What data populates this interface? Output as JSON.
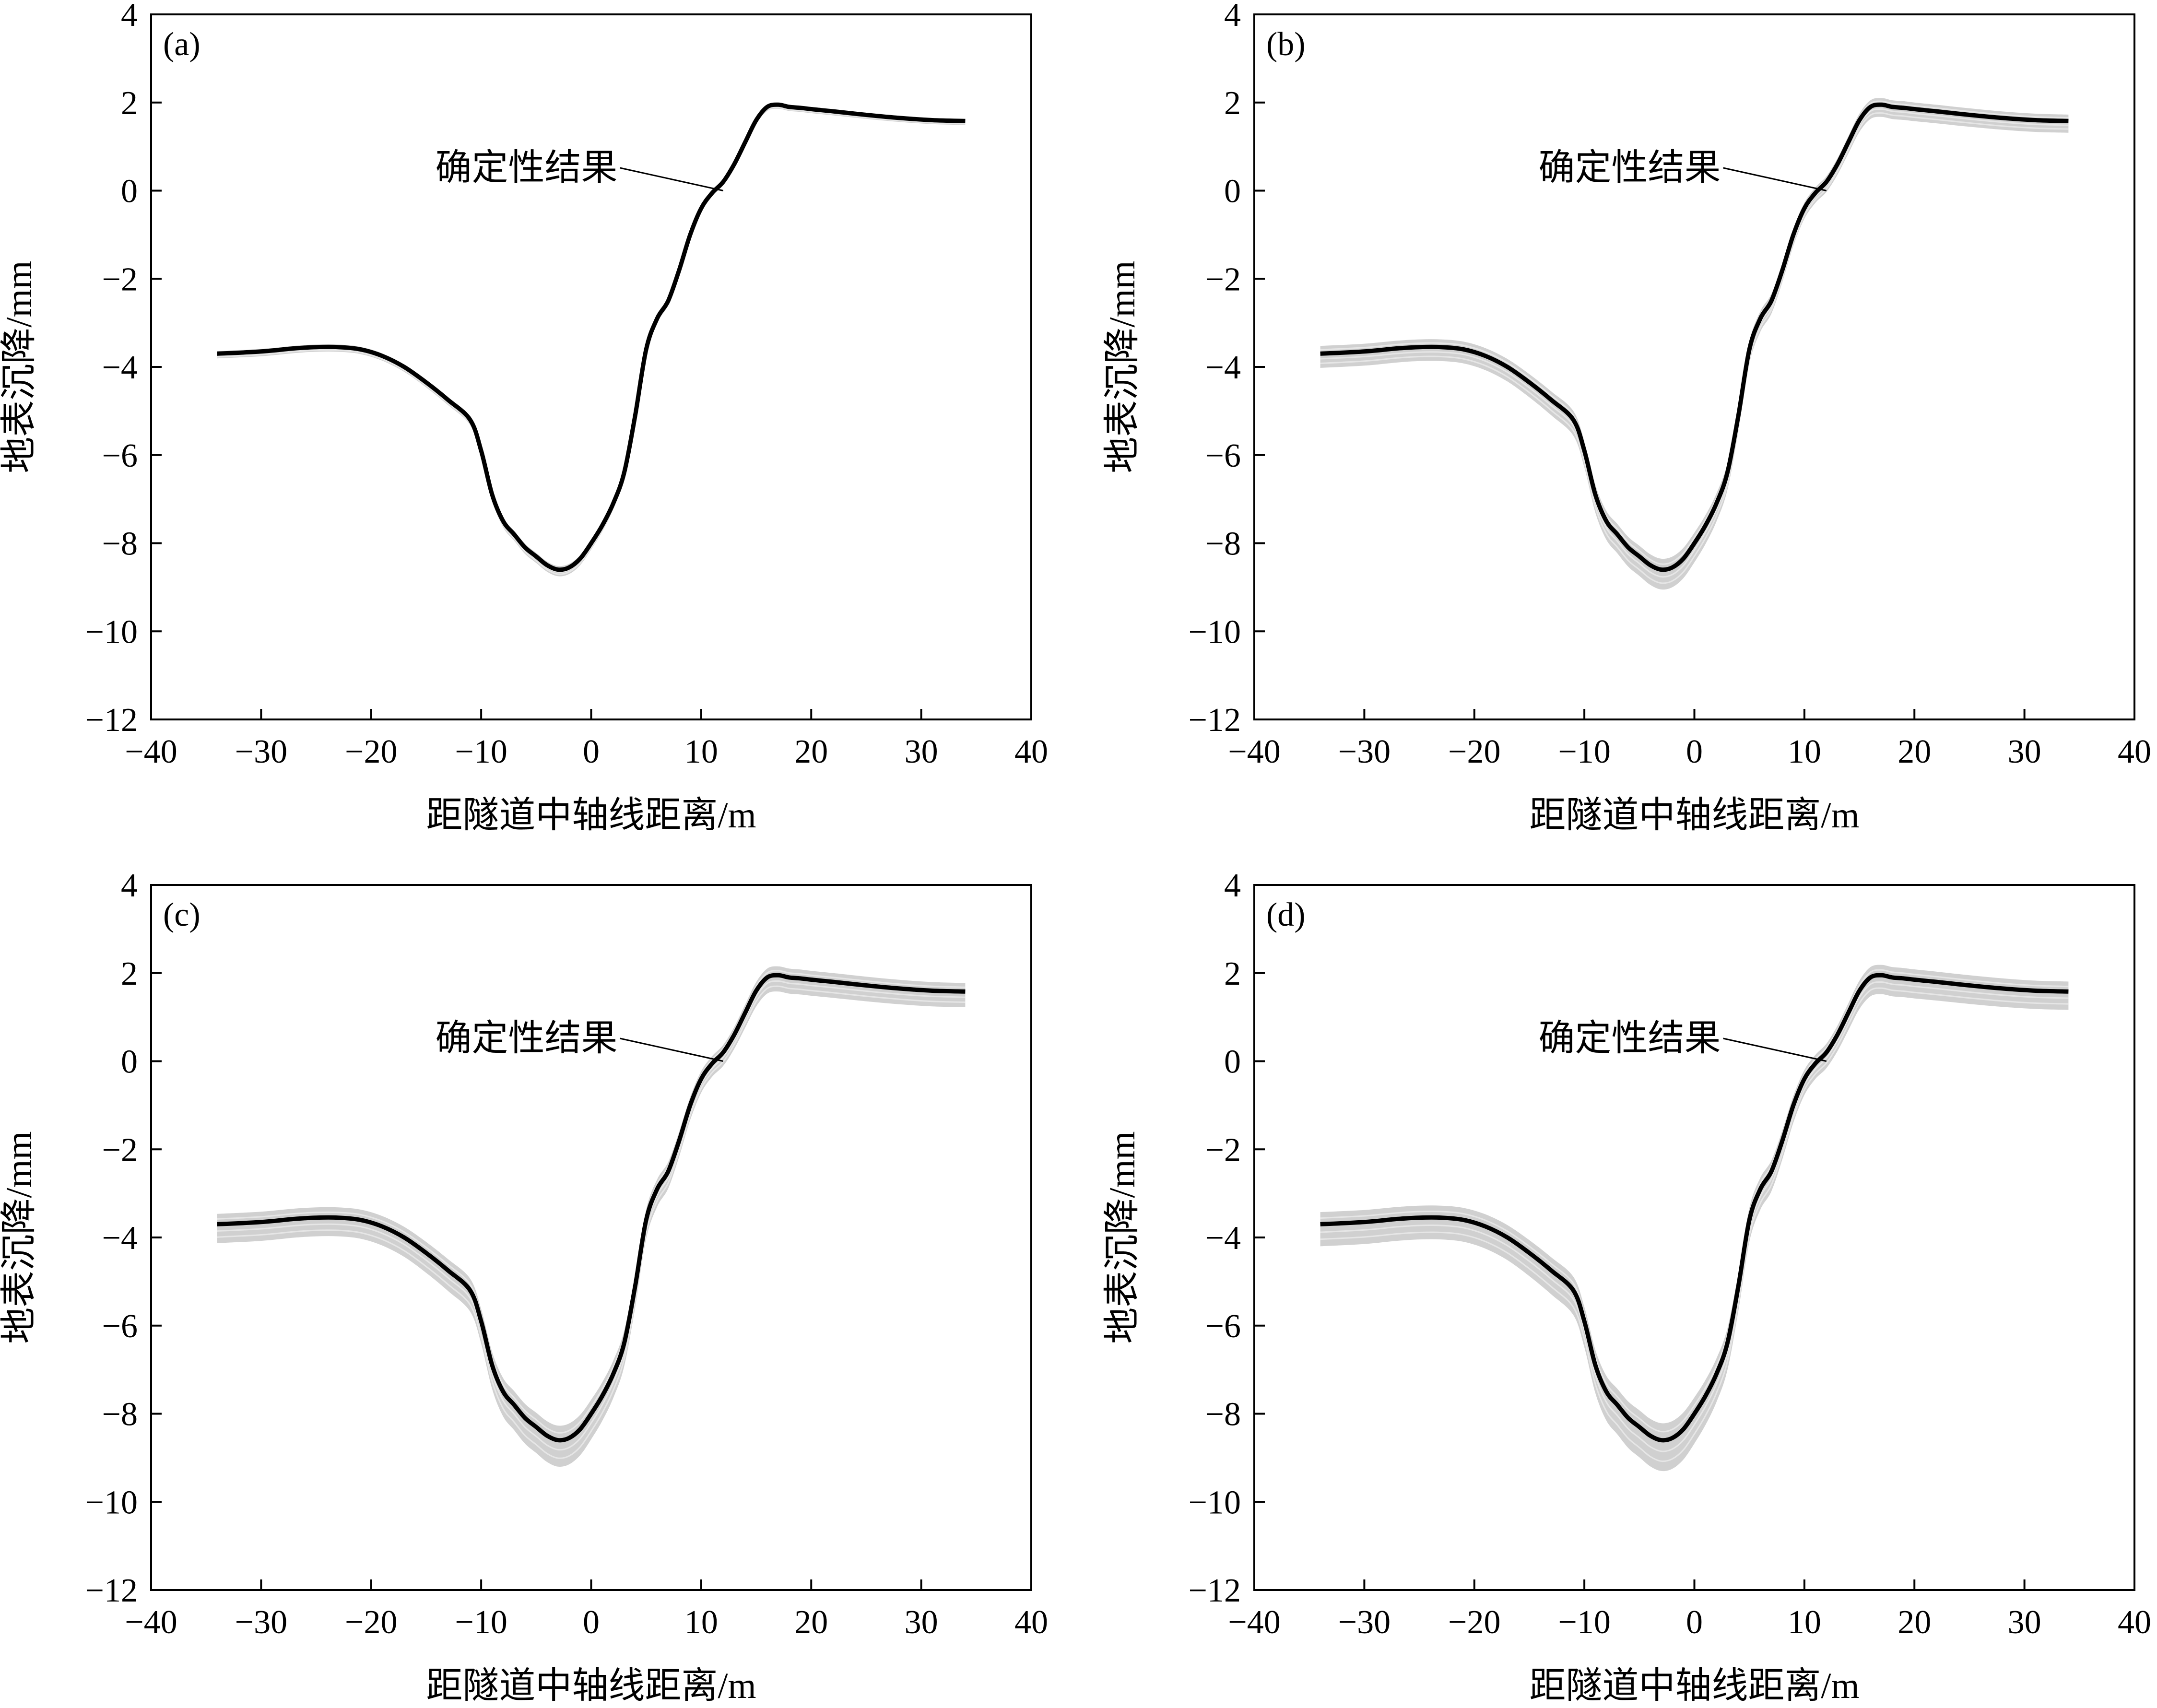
{
  "figure": {
    "description_free": true
  },
  "chart_data": [
    {
      "type": "line",
      "panel_label": "(a)",
      "xlabel": "距隧道中轴线距离/m",
      "ylabel": "地表沉降/mm",
      "xlim": [
        -40,
        40
      ],
      "ylim": [
        -12,
        4
      ],
      "xticks": [
        -40,
        -30,
        -20,
        -10,
        0,
        10,
        20,
        30,
        40
      ],
      "yticks": [
        -12,
        -10,
        -8,
        -6,
        -4,
        -2,
        0,
        2,
        4
      ],
      "xtick_labels": [
        "−40",
        "−30",
        "−20",
        "−10",
        "0",
        "10",
        "20",
        "30",
        "40"
      ],
      "ytick_labels": [
        "−12",
        "−10",
        "−8",
        "−6",
        "−4",
        "−2",
        "0",
        "2",
        "4"
      ],
      "annotation": {
        "text": "确定性结果",
        "target": [
          12,
          0
        ]
      },
      "band_spread": 0.15,
      "series": [
        {
          "name": "确定性结果",
          "color": "#000000",
          "x": [
            -34,
            -30,
            -27,
            -25,
            -23,
            -21,
            -19,
            -17,
            -15,
            -13,
            -11,
            -10,
            -9,
            -8,
            -7,
            -6,
            -5,
            -4,
            -3,
            -2,
            -1,
            0,
            1,
            2,
            3,
            4,
            5,
            6,
            7,
            8,
            9,
            10,
            11,
            12,
            13,
            14,
            15,
            16,
            17,
            18,
            19,
            20,
            22,
            25,
            28,
            31,
            34
          ],
          "y": [
            -3.7,
            -3.65,
            -3.58,
            -3.55,
            -3.55,
            -3.6,
            -3.75,
            -4.0,
            -4.35,
            -4.75,
            -5.2,
            -5.9,
            -6.9,
            -7.5,
            -7.8,
            -8.1,
            -8.3,
            -8.5,
            -8.6,
            -8.55,
            -8.35,
            -8.0,
            -7.6,
            -7.1,
            -6.4,
            -5.1,
            -3.6,
            -2.9,
            -2.5,
            -1.8,
            -1.0,
            -0.4,
            -0.05,
            0.2,
            0.6,
            1.1,
            1.6,
            1.9,
            1.95,
            1.9,
            1.88,
            1.85,
            1.8,
            1.72,
            1.65,
            1.6,
            1.58
          ]
        }
      ]
    },
    {
      "type": "line",
      "panel_label": "(b)",
      "xlabel": "距隧道中轴线距离/m",
      "ylabel": "地表沉降/mm",
      "xlim": [
        -40,
        40
      ],
      "ylim": [
        -12,
        4
      ],
      "xticks": [
        -40,
        -30,
        -20,
        -10,
        0,
        10,
        20,
        30,
        40
      ],
      "yticks": [
        -12,
        -10,
        -8,
        -6,
        -4,
        -2,
        0,
        2,
        4
      ],
      "xtick_labels": [
        "−40",
        "−30",
        "−20",
        "−10",
        "0",
        "10",
        "20",
        "30",
        "40"
      ],
      "ytick_labels": [
        "−12",
        "−10",
        "−8",
        "−6",
        "−4",
        "−2",
        "0",
        "2",
        "4"
      ],
      "annotation": {
        "text": "确定性结果",
        "target": [
          12,
          0
        ]
      },
      "band_spread": 0.45,
      "series": [
        {
          "name": "确定性结果",
          "color": "#000000",
          "x": [
            -34,
            -30,
            -27,
            -25,
            -23,
            -21,
            -19,
            -17,
            -15,
            -13,
            -11,
            -10,
            -9,
            -8,
            -7,
            -6,
            -5,
            -4,
            -3,
            -2,
            -1,
            0,
            1,
            2,
            3,
            4,
            5,
            6,
            7,
            8,
            9,
            10,
            11,
            12,
            13,
            14,
            15,
            16,
            17,
            18,
            19,
            20,
            22,
            25,
            28,
            31,
            34
          ],
          "y": [
            -3.7,
            -3.65,
            -3.58,
            -3.55,
            -3.55,
            -3.6,
            -3.75,
            -4.0,
            -4.35,
            -4.75,
            -5.2,
            -5.9,
            -6.9,
            -7.5,
            -7.8,
            -8.1,
            -8.3,
            -8.5,
            -8.6,
            -8.55,
            -8.35,
            -8.0,
            -7.6,
            -7.1,
            -6.4,
            -5.1,
            -3.6,
            -2.9,
            -2.5,
            -1.8,
            -1.0,
            -0.4,
            -0.05,
            0.2,
            0.6,
            1.1,
            1.6,
            1.9,
            1.95,
            1.9,
            1.88,
            1.85,
            1.8,
            1.72,
            1.65,
            1.6,
            1.58
          ]
        }
      ]
    },
    {
      "type": "line",
      "panel_label": "(c)",
      "xlabel": "距隧道中轴线距离/m",
      "ylabel": "地表沉降/mm",
      "xlim": [
        -40,
        40
      ],
      "ylim": [
        -12,
        4
      ],
      "xticks": [
        -40,
        -30,
        -20,
        -10,
        0,
        10,
        20,
        30,
        40
      ],
      "yticks": [
        -12,
        -10,
        -8,
        -6,
        -4,
        -2,
        0,
        2,
        4
      ],
      "xtick_labels": [
        "−40",
        "−30",
        "−20",
        "−10",
        "0",
        "10",
        "20",
        "30",
        "40"
      ],
      "ytick_labels": [
        "−12",
        "−10",
        "−8",
        "−6",
        "−4",
        "−2",
        "0",
        "2",
        "4"
      ],
      "annotation": {
        "text": "确定性结果",
        "target": [
          12,
          0
        ]
      },
      "band_spread": 0.6,
      "series": [
        {
          "name": "确定性结果",
          "color": "#000000",
          "x": [
            -34,
            -30,
            -27,
            -25,
            -23,
            -21,
            -19,
            -17,
            -15,
            -13,
            -11,
            -10,
            -9,
            -8,
            -7,
            -6,
            -5,
            -4,
            -3,
            -2,
            -1,
            0,
            1,
            2,
            3,
            4,
            5,
            6,
            7,
            8,
            9,
            10,
            11,
            12,
            13,
            14,
            15,
            16,
            17,
            18,
            19,
            20,
            22,
            25,
            28,
            31,
            34
          ],
          "y": [
            -3.7,
            -3.65,
            -3.58,
            -3.55,
            -3.55,
            -3.6,
            -3.75,
            -4.0,
            -4.35,
            -4.75,
            -5.2,
            -5.9,
            -6.9,
            -7.5,
            -7.8,
            -8.1,
            -8.3,
            -8.5,
            -8.6,
            -8.55,
            -8.35,
            -8.0,
            -7.6,
            -7.1,
            -6.4,
            -5.1,
            -3.6,
            -2.9,
            -2.5,
            -1.8,
            -1.0,
            -0.4,
            -0.05,
            0.2,
            0.6,
            1.1,
            1.6,
            1.9,
            1.95,
            1.9,
            1.88,
            1.85,
            1.8,
            1.72,
            1.65,
            1.6,
            1.58
          ]
        }
      ]
    },
    {
      "type": "line",
      "panel_label": "(d)",
      "xlabel": "距隧道中轴线距离/m",
      "ylabel": "地表沉降/mm",
      "xlim": [
        -40,
        40
      ],
      "ylim": [
        -12,
        4
      ],
      "xticks": [
        -40,
        -30,
        -20,
        -10,
        0,
        10,
        20,
        30,
        40
      ],
      "yticks": [
        -12,
        -10,
        -8,
        -6,
        -4,
        -2,
        0,
        2,
        4
      ],
      "xtick_labels": [
        "−40",
        "−30",
        "−20",
        "−10",
        "0",
        "10",
        "20",
        "30",
        "40"
      ],
      "ytick_labels": [
        "−12",
        "−10",
        "−8",
        "−6",
        "−4",
        "−2",
        "0",
        "2",
        "4"
      ],
      "annotation": {
        "text": "确定性结果",
        "target": [
          12,
          0
        ]
      },
      "band_spread": 0.7,
      "series": [
        {
          "name": "确定性结果",
          "color": "#000000",
          "x": [
            -34,
            -30,
            -27,
            -25,
            -23,
            -21,
            -19,
            -17,
            -15,
            -13,
            -11,
            -10,
            -9,
            -8,
            -7,
            -6,
            -5,
            -4,
            -3,
            -2,
            -1,
            0,
            1,
            2,
            3,
            4,
            5,
            6,
            7,
            8,
            9,
            10,
            11,
            12,
            13,
            14,
            15,
            16,
            17,
            18,
            19,
            20,
            22,
            25,
            28,
            31,
            34
          ],
          "y": [
            -3.7,
            -3.65,
            -3.58,
            -3.55,
            -3.55,
            -3.6,
            -3.75,
            -4.0,
            -4.35,
            -4.75,
            -5.2,
            -5.9,
            -6.9,
            -7.5,
            -7.8,
            -8.1,
            -8.3,
            -8.5,
            -8.6,
            -8.55,
            -8.35,
            -8.0,
            -7.6,
            -7.1,
            -6.4,
            -5.1,
            -3.6,
            -2.9,
            -2.5,
            -1.8,
            -1.0,
            -0.4,
            -0.05,
            0.2,
            0.6,
            1.1,
            1.6,
            1.9,
            1.95,
            1.9,
            1.88,
            1.85,
            1.8,
            1.72,
            1.65,
            1.6,
            1.58
          ]
        }
      ]
    }
  ],
  "colors": {
    "band": "#d0d0d0",
    "line": "#000000",
    "axis": "#000000"
  }
}
